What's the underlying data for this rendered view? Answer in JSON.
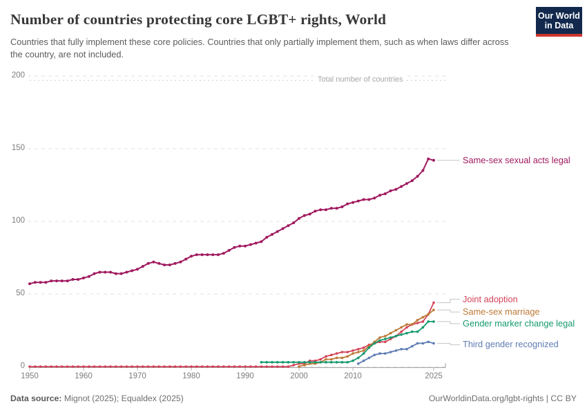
{
  "header": {
    "title": "Number of countries protecting core LGBT+ rights, World",
    "subtitle": "Countries that fully implement these core policies. Countries that only partially implement them, such as when laws differ across the country, are not included.",
    "logo_line1": "Our World",
    "logo_line2": "in Data",
    "logo_bg_color": "#12294d",
    "logo_stripe_color": "#cf352e"
  },
  "chart_data": {
    "type": "line",
    "title": "Number of countries protecting core LGBT+ rights, World",
    "xlabel": "",
    "ylabel": "",
    "x_ticks": [
      1950,
      1960,
      1970,
      1980,
      1990,
      2000,
      2010,
      2025
    ],
    "y_ticks": [
      0,
      50,
      100,
      150,
      200
    ],
    "xlim": [
      1950,
      2025
    ],
    "ylim": [
      0,
      200
    ],
    "grid": "dashed-horizontal",
    "legend_position": "right-edge-labels",
    "annotation": {
      "label": "Total number of countries",
      "value": 197
    },
    "series": [
      {
        "name": "Same-sex sexual acts legal",
        "color": "#a0195f",
        "start_year": 1950,
        "values": [
          57,
          58,
          58,
          58,
          59,
          59,
          59,
          59,
          60,
          60,
          61,
          62,
          64,
          65,
          65,
          65,
          64,
          64,
          65,
          66,
          67,
          69,
          71,
          72,
          71,
          70,
          70,
          71,
          72,
          74,
          76,
          77,
          77,
          77,
          77,
          77,
          78,
          80,
          82,
          83,
          83,
          84,
          85,
          86,
          89,
          91,
          93,
          95,
          97,
          99,
          102,
          104,
          105,
          107,
          108,
          108,
          109,
          109,
          110,
          112,
          113,
          114,
          115,
          115,
          116,
          118,
          119,
          121,
          122,
          124,
          126,
          128,
          131,
          135,
          143,
          142
        ]
      },
      {
        "name": "Joint adoption",
        "color": "#d34358",
        "start_year": 1950,
        "values": [
          0,
          0,
          0,
          0,
          0,
          0,
          0,
          0,
          0,
          0,
          0,
          0,
          0,
          0,
          0,
          0,
          0,
          0,
          0,
          0,
          0,
          0,
          0,
          0,
          0,
          0,
          0,
          0,
          0,
          0,
          0,
          0,
          0,
          0,
          0,
          0,
          0,
          0,
          0,
          0,
          0,
          0,
          0,
          0,
          0,
          0,
          0,
          0,
          0,
          1,
          2,
          2,
          4,
          4,
          5,
          7,
          8,
          9,
          10,
          10,
          11,
          12,
          13,
          15,
          16,
          17,
          17,
          19,
          21,
          24,
          27,
          29,
          30,
          31,
          36,
          44
        ]
      },
      {
        "name": "Same-sex marriage",
        "color": "#bd7935",
        "start_year": 2000,
        "values": [
          0,
          1,
          2,
          2,
          3,
          5,
          5,
          6,
          6,
          7,
          9,
          10,
          11,
          14,
          17,
          20,
          21,
          23,
          25,
          27,
          29,
          29,
          32,
          34,
          36,
          39
        ]
      },
      {
        "name": "Gender marker change legal",
        "color": "#14996e",
        "start_year": 1993,
        "values": [
          3,
          3,
          3,
          3,
          3,
          3,
          3,
          3,
          3,
          3,
          3,
          3,
          3,
          3,
          3,
          3,
          3,
          4,
          6,
          9,
          13,
          16,
          18,
          19,
          20,
          21,
          22,
          23,
          24,
          24,
          27,
          31,
          31
        ]
      },
      {
        "name": "Third gender recognized",
        "color": "#5e7db3",
        "start_year": 2011,
        "values": [
          2,
          4,
          6,
          8,
          9,
          9,
          10,
          11,
          12,
          12,
          14,
          16,
          16,
          17,
          16
        ]
      }
    ]
  },
  "footer": {
    "source_label": "Data source:",
    "source_value": " Mignot (2025); Equaldex (2025)",
    "right_text": "OurWorldinData.org/lgbt-rights | CC BY"
  }
}
